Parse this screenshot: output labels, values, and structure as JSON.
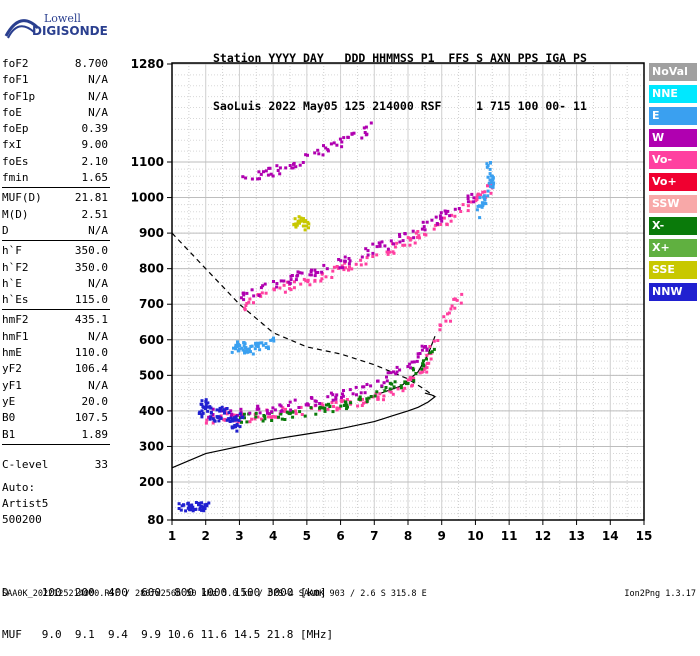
{
  "logo": {
    "line1": "Lowell",
    "line2": "DIGISONDE"
  },
  "header": {
    "line1": "Station YYYY DAY   DDD HHMMSS P1  FFS S AXN PPS IGA PS",
    "line2": "SaoLuis 2022 May05 125 214000 RSF     1 715 100 00- 11"
  },
  "params": [
    [
      {
        "label": "foF2",
        "value": "8.700"
      },
      {
        "label": "foF1",
        "value": "N/A"
      },
      {
        "label": "foF1p",
        "value": "N/A"
      },
      {
        "label": "foE",
        "value": "N/A"
      },
      {
        "label": "foEp",
        "value": "0.39"
      },
      {
        "label": "fxI",
        "value": "9.00"
      },
      {
        "label": "foEs",
        "value": "2.10"
      },
      {
        "label": "fmin",
        "value": "1.65"
      }
    ],
    [
      {
        "label": "MUF(D)",
        "value": "21.81"
      },
      {
        "label": "M(D)",
        "value": "2.51"
      },
      {
        "label": "D",
        "value": "N/A"
      }
    ],
    [
      {
        "label": "h`F",
        "value": "350.0"
      },
      {
        "label": "h`F2",
        "value": "350.0"
      },
      {
        "label": "h`E",
        "value": "N/A"
      },
      {
        "label": "h`Es",
        "value": "115.0"
      }
    ],
    [
      {
        "label": "hmF2",
        "value": "435.1"
      },
      {
        "label": "hmF1",
        "value": "N/A"
      },
      {
        "label": "hmE",
        "value": "110.0"
      },
      {
        "label": "yF2",
        "value": "106.4"
      },
      {
        "label": "yF1",
        "value": "N/A"
      },
      {
        "label": "yE",
        "value": "20.0"
      },
      {
        "label": "B0",
        "value": "107.5"
      },
      {
        "label": "B1",
        "value": "1.89"
      }
    ]
  ],
  "clevel": {
    "label": "C-level",
    "value": "33"
  },
  "auto": {
    "line1": "Auto:",
    "line2": "Artist5",
    "line3": "500200"
  },
  "muf_table": {
    "line1": "D     100  200  400  600  800 1000 1500 3000 [km]",
    "line2": "MUF   9.0  9.1  9.4  9.9 10.6 11.6 14.5 21.8 [MHz]"
  },
  "footer": "SAA0K_2022125214000.RSF / 280fx256h 50 kHz 5.0 km / DPS-4 SAA0K 903 / 2.6 S 315.8 E",
  "version": "Ion2Png 1.3.17",
  "legend": [
    {
      "label": "NoVal",
      "color": "#a0a0a0"
    },
    {
      "label": "NNE",
      "color": "#00e8ff"
    },
    {
      "label": "E",
      "color": "#3aa0f0"
    },
    {
      "label": "W",
      "color": "#b000b0"
    },
    {
      "label": "Vo-",
      "color": "#ff40a0"
    },
    {
      "label": "Vo+",
      "color": "#f00030"
    },
    {
      "label": "SSW",
      "color": "#f8a8a8"
    },
    {
      "label": "X-",
      "color": "#0a7a0a"
    },
    {
      "label": "X+",
      "color": "#60b040"
    },
    {
      "label": "SSE",
      "color": "#c8c800"
    },
    {
      "label": "NNW",
      "color": "#2020d0"
    }
  ],
  "chart_data": {
    "type": "scatter",
    "x_ticks": [
      "1",
      "2",
      "3",
      "4",
      "5",
      "6",
      "7",
      "8",
      "9",
      "10",
      "11",
      "12",
      "13",
      "14",
      "15"
    ],
    "y_ticks": [
      "80",
      "200",
      "300",
      "400",
      "500",
      "600",
      "700",
      "800",
      "900",
      "1000",
      "1100",
      "1280"
    ],
    "xlim": [
      1,
      15
    ],
    "ylim": [
      80,
      1280
    ],
    "y_tick_values": [
      80,
      200,
      300,
      400,
      500,
      600,
      700,
      800,
      900,
      1000,
      1100,
      1280
    ],
    "grid": true,
    "legend_position": "right",
    "series": [
      {
        "color": "#ff40a0",
        "points": [
          [
            3,
            700
          ],
          [
            4,
            740
          ],
          [
            5,
            770
          ],
          [
            6,
            800
          ],
          [
            7,
            840
          ],
          [
            8,
            880
          ],
          [
            9,
            930
          ],
          [
            10,
            1000
          ],
          [
            10.5,
            1040
          ]
        ]
      },
      {
        "color": "#b000b0",
        "points": [
          [
            3,
            720
          ],
          [
            4,
            760
          ],
          [
            5,
            790
          ],
          [
            6,
            820
          ],
          [
            7,
            860
          ],
          [
            8,
            900
          ],
          [
            9,
            950
          ],
          [
            10,
            1010
          ]
        ]
      },
      {
        "color": "#b000b0",
        "points": [
          [
            3,
            1050
          ],
          [
            4,
            1080
          ],
          [
            5,
            1110
          ],
          [
            6,
            1140
          ],
          [
            7,
            1170
          ]
        ]
      },
      {
        "color": "#ff40a0",
        "points": [
          [
            2,
            380
          ],
          [
            3,
            385
          ],
          [
            4,
            395
          ],
          [
            5,
            410
          ],
          [
            6,
            420
          ],
          [
            7,
            440
          ],
          [
            8,
            480
          ],
          [
            8.5,
            530
          ],
          [
            9,
            650
          ],
          [
            9.5,
            720
          ]
        ]
      },
      {
        "color": "#0a7a0a",
        "points": [
          [
            3,
            380
          ],
          [
            4,
            390
          ],
          [
            5,
            400
          ],
          [
            6,
            420
          ],
          [
            7,
            450
          ],
          [
            8,
            490
          ],
          [
            8.7,
            580
          ]
        ]
      },
      {
        "color": "#b000b0",
        "points": [
          [
            2,
            395
          ],
          [
            3,
            400
          ],
          [
            4,
            410
          ],
          [
            5,
            430
          ],
          [
            6,
            450
          ],
          [
            7,
            480
          ],
          [
            8,
            530
          ],
          [
            8.6,
            600
          ]
        ]
      },
      {
        "color": "#2020d0",
        "points": [
          [
            1.8,
            400
          ],
          [
            2,
            430
          ],
          [
            2.2,
            380
          ],
          [
            2.5,
            410
          ],
          [
            2.8,
            360
          ],
          [
            3,
            390
          ]
        ]
      },
      {
        "color": "#2020d0",
        "points": [
          [
            1.2,
            120
          ],
          [
            1.5,
            125
          ],
          [
            1.8,
            130
          ],
          [
            2,
            125
          ]
        ]
      },
      {
        "color": "#3aa0f0",
        "points": [
          [
            2.8,
            580
          ],
          [
            3,
            590
          ],
          [
            3.2,
            570
          ],
          [
            3.5,
            585
          ],
          [
            4,
            600
          ]
        ]
      },
      {
        "color": "#c8c800",
        "points": [
          [
            4.5,
            930
          ],
          [
            4.8,
            940
          ],
          [
            5,
            920
          ]
        ]
      },
      {
        "color": "#3aa0f0",
        "points": [
          [
            10.3,
            1100
          ],
          [
            10.5,
            1050
          ],
          [
            10.2,
            1000
          ],
          [
            10,
            950
          ]
        ]
      }
    ],
    "lines": [
      {
        "style": "solid",
        "points": [
          [
            1,
            240
          ],
          [
            2,
            280
          ],
          [
            3,
            300
          ],
          [
            4,
            320
          ],
          [
            5,
            335
          ],
          [
            6,
            350
          ],
          [
            7,
            370
          ],
          [
            7.5,
            385
          ],
          [
            8,
            400
          ],
          [
            8.3,
            410
          ],
          [
            8.6,
            425
          ],
          [
            8.8,
            440
          ],
          [
            8.7,
            445
          ],
          [
            8.5,
            450
          ]
        ]
      },
      {
        "style": "dashed",
        "points": [
          [
            1,
            900
          ],
          [
            1.5,
            850
          ],
          [
            2,
            800
          ],
          [
            2.5,
            750
          ],
          [
            3,
            700
          ],
          [
            3.5,
            660
          ],
          [
            4,
            620
          ],
          [
            5,
            580
          ],
          [
            6,
            560
          ],
          [
            7,
            530
          ],
          [
            7.5,
            510
          ],
          [
            8,
            490
          ],
          [
            8.5,
            460
          ],
          [
            8.8,
            440
          ]
        ]
      },
      {
        "style": "solid",
        "points": [
          [
            7.2,
            450
          ],
          [
            7.8,
            470
          ],
          [
            8.3,
            510
          ],
          [
            8.6,
            560
          ],
          [
            8.8,
            610
          ]
        ]
      }
    ]
  }
}
